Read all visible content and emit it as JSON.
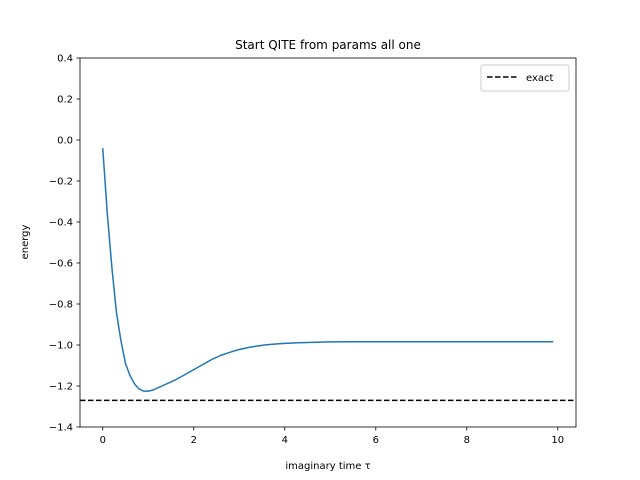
{
  "chart_data": {
    "type": "line",
    "title": "Start QITE from params all one",
    "xlabel": "imaginary time τ",
    "ylabel": "energy",
    "xlim": [
      -0.5,
      10.4
    ],
    "ylim": [
      -1.4,
      0.4
    ],
    "xticks": [
      0,
      2,
      4,
      6,
      8,
      10
    ],
    "xtick_labels": [
      "0",
      "2",
      "4",
      "6",
      "8",
      "10"
    ],
    "yticks": [
      -1.4,
      -1.2,
      -1.0,
      -0.8,
      -0.6,
      -0.4,
      -0.2,
      0.0,
      0.2,
      0.4
    ],
    "ytick_labels": [
      "−1.4",
      "−1.2",
      "−1.0",
      "−0.8",
      "−0.6",
      "−0.4",
      "−0.2",
      "0.0",
      "0.2",
      "0.4"
    ],
    "grid": false,
    "legend_position": "top-right",
    "series": [
      {
        "name": "",
        "color": "#1f77b4",
        "style": "solid",
        "x": [
          0,
          0.1,
          0.2,
          0.3,
          0.4,
          0.5,
          0.6,
          0.7,
          0.8,
          0.9,
          1.0,
          1.1,
          1.2,
          1.3,
          1.4,
          1.6,
          1.8,
          2.0,
          2.2,
          2.4,
          2.6,
          2.8,
          3.0,
          3.2,
          3.4,
          3.6,
          3.8,
          4.0,
          4.3,
          4.6,
          5.0,
          5.5,
          6.0,
          6.5,
          7.0,
          7.5,
          8.0,
          8.5,
          9.0,
          9.5,
          9.9
        ],
        "y": [
          -0.04,
          -0.36,
          -0.62,
          -0.84,
          -0.98,
          -1.09,
          -1.15,
          -1.19,
          -1.215,
          -1.225,
          -1.225,
          -1.22,
          -1.21,
          -1.2,
          -1.19,
          -1.17,
          -1.145,
          -1.12,
          -1.095,
          -1.07,
          -1.05,
          -1.035,
          -1.022,
          -1.012,
          -1.005,
          -0.999,
          -0.995,
          -0.992,
          -0.989,
          -0.987,
          -0.985,
          -0.984,
          -0.984,
          -0.984,
          -0.984,
          -0.984,
          -0.984,
          -0.984,
          -0.984,
          -0.984,
          -0.984
        ]
      },
      {
        "name": "exact",
        "color": "#000000",
        "style": "dashed",
        "hline": -1.27
      }
    ]
  }
}
